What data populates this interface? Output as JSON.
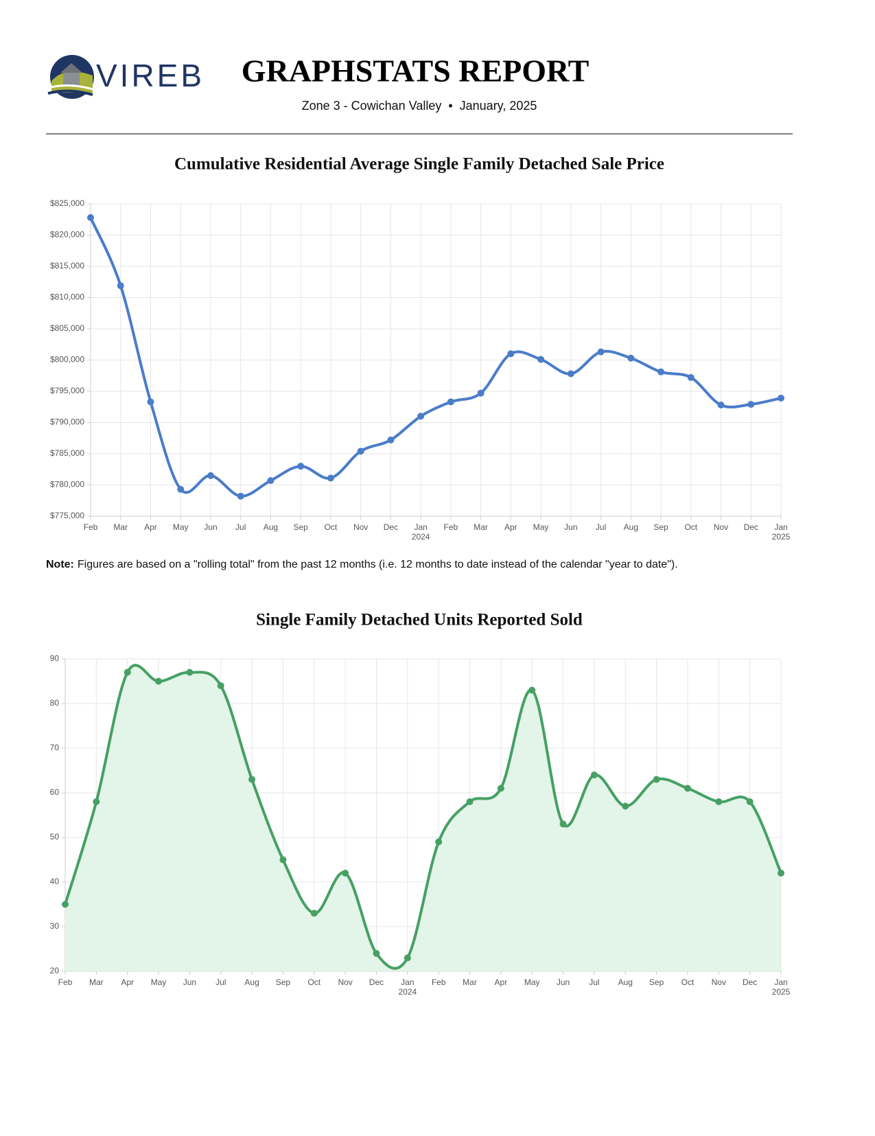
{
  "header": {
    "logo_text": "VIREB",
    "title": "GRAPHSTATS REPORT",
    "subtitle": "Zone 3 - Cowichan Valley  •  January, 2025"
  },
  "note": {
    "label": "Note:",
    "text": "Figures are based on a \"rolling total\" from the past 12 months (i.e. 12 months to date instead of the calendar \"year to date\")."
  },
  "chart_data": [
    {
      "type": "line",
      "title": "Cumulative Residential Average Single Family Detached Sale Price",
      "categories": [
        "Feb",
        "Mar",
        "Apr",
        "May",
        "Jun",
        "Jul",
        "Aug",
        "Sep",
        "Oct",
        "Nov",
        "Dec",
        "Jan 2024",
        "Feb",
        "Mar",
        "Apr",
        "May",
        "Jun",
        "Jul",
        "Aug",
        "Sep",
        "Oct",
        "Nov",
        "Dec",
        "Jan 2025"
      ],
      "values": [
        822800,
        811900,
        793300,
        779300,
        781500,
        778200,
        780700,
        783000,
        781100,
        785400,
        787200,
        791000,
        793300,
        794700,
        801000,
        800100,
        797800,
        801300,
        800300,
        798100,
        797200,
        792800,
        792900,
        793900
      ],
      "color": "#4a7cc9",
      "ylim": [
        775000,
        825000
      ],
      "yticks": [
        {
          "value": 775000,
          "label": "$775,000"
        },
        {
          "value": 780000,
          "label": "$780,000"
        },
        {
          "value": 785000,
          "label": "$785,000"
        },
        {
          "value": 790000,
          "label": "$790,000"
        },
        {
          "value": 795000,
          "label": "$795,000"
        },
        {
          "value": 800000,
          "label": "$800,000"
        },
        {
          "value": 805000,
          "label": "$805,000"
        },
        {
          "value": 810000,
          "label": "$810,000"
        },
        {
          "value": 815000,
          "label": "$815,000"
        },
        {
          "value": 820000,
          "label": "$820,000"
        },
        {
          "value": 825000,
          "label": "$825,000"
        }
      ],
      "grid": true
    },
    {
      "type": "area",
      "title": "Single Family Detached Units Reported Sold",
      "categories": [
        "Feb",
        "Mar",
        "Apr",
        "May",
        "Jun",
        "Jul",
        "Aug",
        "Sep",
        "Oct",
        "Nov",
        "Dec",
        "Jan 2024",
        "Feb",
        "Mar",
        "Apr",
        "May",
        "Jun",
        "Jul",
        "Aug",
        "Sep",
        "Oct",
        "Nov",
        "Dec",
        "Jan 2025"
      ],
      "values": [
        35,
        58,
        87,
        85,
        87,
        84,
        63,
        45,
        33,
        42,
        24,
        23,
        49,
        58,
        61,
        83,
        53,
        64,
        57,
        63,
        61,
        58,
        58,
        42
      ],
      "color": "#46a064",
      "fill_color": "#e3f4e8",
      "ylim": [
        20,
        90
      ],
      "yticks": [
        20,
        30,
        40,
        50,
        60,
        70,
        80,
        90
      ],
      "grid": true
    }
  ]
}
